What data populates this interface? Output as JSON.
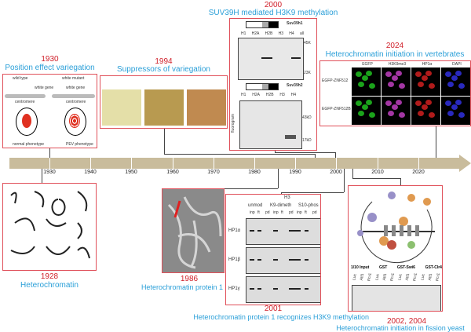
{
  "timeline": {
    "ticks": [
      "1930",
      "1940",
      "1950",
      "1960",
      "1970",
      "1980",
      "1990",
      "2000",
      "2010",
      "2020"
    ],
    "color": "#c9bc9c"
  },
  "events": [
    {
      "year": "1930",
      "title": "Position effect variegation",
      "labels": [
        "wild type",
        "white mutant",
        "white gene",
        "white gene",
        "centromere",
        "centromere",
        "normal phenotype",
        "PEV phenotype"
      ]
    },
    {
      "year": "1994",
      "title": "Suppressors of variegation"
    },
    {
      "year": "2000",
      "title": "SUV39H mediated H3K9 methylation",
      "labels": {
        "gene1": "Suv39h1",
        "gene2": "Suv39h2",
        "lanes1": [
          "H1",
          "H2A",
          "H2B",
          "H3",
          "H4",
          "all"
        ],
        "lanes2": [
          "H1",
          "H2A",
          "H2B",
          "H3",
          "H4"
        ],
        "markers1": [
          "45K",
          "23K"
        ],
        "markers2": [
          "43kD",
          "17kD"
        ],
        "y_label": "fluorogram"
      }
    },
    {
      "year": "2024",
      "title": "Heterochromatin initiation in vertebrates",
      "columns": [
        "EGFP",
        "H3K9me3",
        "HP1α",
        "DAPI"
      ],
      "rows": [
        "EGFP-ZNF512",
        "EGFP-ZNF512B"
      ]
    },
    {
      "year": "1928",
      "title": "Heterochromatin"
    },
    {
      "year": "1986",
      "title": "Heterochromatin protein 1"
    },
    {
      "year": "2001",
      "title": "Heterochromatin protein 1 recognizes H3K9 methylation",
      "labels": {
        "top": "H3",
        "groups": [
          "unmod",
          "K9-dimeth",
          "S10-phos"
        ],
        "lanes": [
          "inp",
          "ft",
          "pd"
        ],
        "rows": [
          "HP1α",
          "HP1β",
          "HP1γ"
        ]
      }
    },
    {
      "year": "2002, 2004",
      "title": "Heterochromatin initiation in fission yeast",
      "labels": {
        "groups": [
          "1/10 Input",
          "GST",
          "GST-Swi6",
          "GST-Clr4"
        ],
        "lanes": [
          "Luc",
          "Atf1",
          "Pcr1"
        ]
      }
    }
  ]
}
